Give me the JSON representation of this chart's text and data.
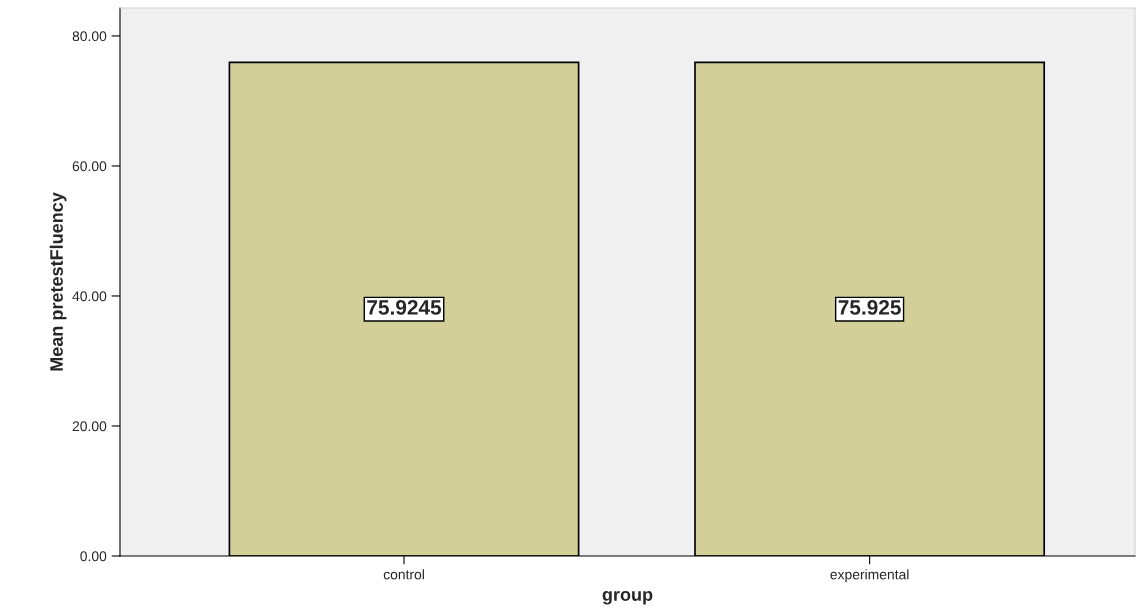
{
  "chart_data": {
    "type": "bar",
    "xlabel": "group",
    "ylabel": "Mean pretestFluency",
    "categories": [
      "control",
      "experimental"
    ],
    "values": [
      75.9245,
      75.925
    ],
    "color": "#d3cf99",
    "ylim": [
      0,
      84.3
    ],
    "yticks": [
      {
        "value": 0,
        "label": "0.00"
      },
      {
        "value": 20,
        "label": "20.00"
      },
      {
        "value": 40,
        "label": "40.00"
      },
      {
        "value": 60,
        "label": "60.00"
      },
      {
        "value": 80,
        "label": "80.00"
      }
    ],
    "data_labels": true,
    "grid": false,
    "legend": false
  }
}
